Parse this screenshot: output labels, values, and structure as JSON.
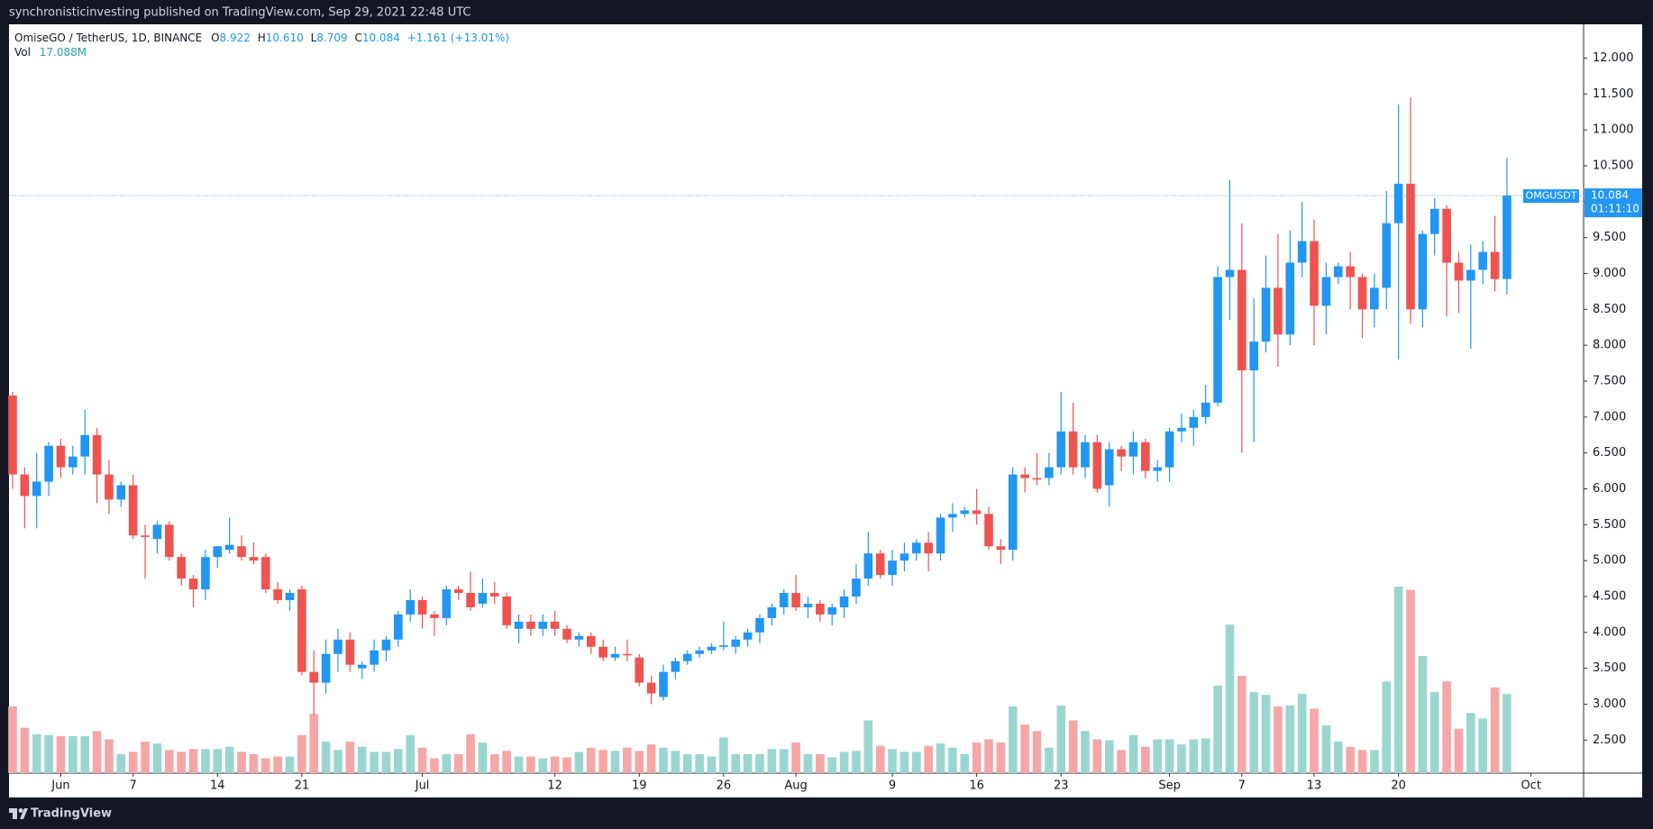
{
  "chart_data": {
    "type": "candlestick",
    "header": "synchronisticinvesting published on TradingView.com, Sep 29, 2021 22:48 UTC",
    "legend": {
      "symbol": "OmiseGO / TetherUS, 1D, BINANCE",
      "ohlc": [
        {
          "label": "O",
          "value": "8.922"
        },
        {
          "label": "H",
          "value": "10.610"
        },
        {
          "label": "L",
          "value": "8.709"
        },
        {
          "label": "C",
          "value": "10.084"
        }
      ],
      "change": "+1.161 (+13.01%)",
      "volume_name": "Vol",
      "volume_label": "17.088M"
    },
    "price_label": {
      "symbol": "OMGUSDT",
      "value": "10.084",
      "countdown": "01:11:10"
    },
    "footer": "TradingView",
    "up_color": "#2196f3",
    "down_color": "#ef5350",
    "volume_up_color": "#9ad6cf",
    "volume_down_color": "#f5a6a6",
    "last_line_color": "#2a9fa6",
    "xlim": [
      -0.26,
      130.36
    ],
    "xticks": [
      {
        "value": 4,
        "label": "Jun"
      },
      {
        "value": 10,
        "label": "7"
      },
      {
        "value": 17,
        "label": "14"
      },
      {
        "value": 24,
        "label": "21"
      },
      {
        "value": 34,
        "label": "Jul"
      },
      {
        "value": 45,
        "label": "12"
      },
      {
        "value": 52,
        "label": "19"
      },
      {
        "value": 59,
        "label": "26"
      },
      {
        "value": 65,
        "label": "Aug"
      },
      {
        "value": 73,
        "label": "9"
      },
      {
        "value": 80,
        "label": "16"
      },
      {
        "value": 87,
        "label": "23"
      },
      {
        "value": 96,
        "label": "Sep"
      },
      {
        "value": 102,
        "label": "7"
      },
      {
        "value": 108,
        "label": "13"
      },
      {
        "value": 115,
        "label": "20"
      },
      {
        "value": 126,
        "label": "Oct"
      }
    ],
    "ylim": [
      2.04,
      12.47
    ],
    "yticks": [
      {
        "value": 2.5,
        "label": "2.500"
      },
      {
        "value": 3,
        "label": "3.000"
      },
      {
        "value": 3.5,
        "label": "3.500"
      },
      {
        "value": 4,
        "label": "4.000"
      },
      {
        "value": 4.5,
        "label": "4.500"
      },
      {
        "value": 5,
        "label": "5.000"
      },
      {
        "value": 5.5,
        "label": "5.500"
      },
      {
        "value": 6,
        "label": "6.000"
      },
      {
        "value": 6.5,
        "label": "6.500"
      },
      {
        "value": 7,
        "label": "7.000"
      },
      {
        "value": 7.5,
        "label": "7.500"
      },
      {
        "value": 8,
        "label": "8.000"
      },
      {
        "value": 8.5,
        "label": "8.500"
      },
      {
        "value": 9,
        "label": "9.000"
      },
      {
        "value": 9.5,
        "label": "9.500"
      },
      {
        "value": 10,
        "label": "10.000"
      },
      {
        "value": 10.5,
        "label": "10.500"
      },
      {
        "value": 11,
        "label": "11.000"
      },
      {
        "value": 11.5,
        "label": "11.500"
      },
      {
        "value": 12,
        "label": "12.000"
      }
    ],
    "open": [
      7.3,
      6.2,
      5.9,
      6.1,
      6.6,
      6.3,
      6.45,
      6.75,
      6.2,
      5.85,
      6.05,
      5.35,
      5.3,
      5.5,
      5.05,
      4.75,
      4.6,
      5.05,
      5.15,
      5.2,
      5.05,
      5.05,
      4.6,
      4.45,
      4.6,
      3.45,
      3.3,
      3.7,
      3.9,
      3.5,
      3.55,
      3.75,
      3.9,
      4.25,
      4.45,
      4.25,
      4.2,
      4.6,
      4.55,
      4.4,
      4.55,
      4.5,
      4.05,
      4.15,
      4.05,
      4.15,
      4.05,
      3.9,
      3.95,
      3.8,
      3.65,
      3.7,
      3.65,
      3.3,
      3.1,
      3.45,
      3.6,
      3.7,
      3.75,
      3.8,
      3.8,
      3.9,
      4.0,
      4.2,
      4.35,
      4.55,
      4.35,
      4.4,
      4.25,
      4.35,
      4.5,
      4.75,
      5.1,
      4.8,
      5.0,
      5.1,
      5.25,
      5.1,
      5.6,
      5.65,
      5.7,
      5.65,
      5.2,
      5.15,
      6.2,
      6.15,
      6.15,
      6.3,
      6.8,
      6.3,
      6.65,
      6.05,
      6.55,
      6.45,
      6.65,
      6.25,
      6.3,
      6.8,
      6.85,
      7.0,
      7.2,
      8.95,
      9.05,
      7.65,
      8.05,
      8.8,
      8.15,
      9.15,
      9.45,
      8.55,
      8.95,
      9.1,
      8.95,
      8.5,
      8.8,
      9.7,
      10.25,
      8.5,
      9.55,
      9.9,
      9.15,
      8.9,
      9.05,
      9.3,
      8.922
    ],
    "high": [
      7.35,
      6.3,
      6.5,
      6.65,
      6.7,
      6.6,
      7.1,
      6.85,
      6.4,
      6.1,
      6.2,
      5.5,
      5.55,
      5.55,
      5.1,
      4.8,
      5.15,
      5.2,
      5.6,
      5.35,
      5.25,
      5.1,
      4.7,
      4.6,
      4.65,
      3.75,
      3.9,
      4.05,
      4.0,
      3.6,
      3.9,
      3.95,
      4.3,
      4.6,
      4.5,
      4.3,
      4.65,
      4.65,
      4.85,
      4.75,
      4.7,
      4.55,
      4.25,
      4.25,
      4.25,
      4.3,
      4.1,
      4.0,
      4.0,
      3.9,
      3.8,
      3.9,
      3.7,
      3.4,
      3.55,
      3.65,
      3.75,
      3.8,
      3.85,
      4.15,
      3.95,
      4.05,
      4.25,
      4.4,
      4.6,
      4.8,
      4.5,
      4.45,
      4.4,
      4.6,
      4.95,
      5.4,
      5.15,
      5.15,
      5.25,
      5.3,
      5.4,
      5.65,
      5.8,
      5.75,
      6.0,
      5.75,
      5.3,
      6.3,
      6.3,
      6.5,
      6.5,
      7.35,
      7.2,
      6.75,
      6.75,
      6.65,
      6.6,
      6.8,
      6.7,
      6.4,
      6.85,
      7.05,
      7.1,
      7.45,
      9.1,
      10.3,
      9.7,
      8.65,
      9.25,
      9.55,
      9.6,
      10.0,
      9.75,
      9.15,
      9.15,
      9.3,
      9.0,
      9.0,
      10.15,
      11.35,
      11.45,
      9.6,
      10.05,
      9.95,
      9.3,
      9.4,
      9.45,
      9.8,
      10.61
    ],
    "low": [
      6.0,
      5.45,
      5.45,
      5.9,
      6.15,
      6.2,
      6.2,
      5.8,
      5.65,
      5.75,
      5.3,
      4.75,
      5.1,
      5.0,
      4.65,
      4.35,
      4.45,
      4.9,
      5.1,
      5.0,
      4.95,
      4.55,
      4.4,
      4.3,
      3.4,
      2.85,
      3.15,
      3.45,
      3.45,
      3.35,
      3.45,
      3.6,
      3.8,
      4.15,
      4.05,
      3.95,
      4.1,
      4.45,
      4.3,
      4.35,
      4.4,
      4.05,
      3.85,
      3.95,
      3.95,
      3.95,
      3.85,
      3.8,
      3.7,
      3.6,
      3.6,
      3.6,
      3.25,
      3.0,
      3.05,
      3.35,
      3.55,
      3.65,
      3.7,
      3.75,
      3.7,
      3.8,
      3.85,
      4.1,
      4.25,
      4.3,
      4.2,
      4.15,
      4.1,
      4.2,
      4.4,
      4.65,
      4.75,
      4.65,
      4.85,
      5.0,
      4.85,
      5.0,
      5.4,
      5.6,
      5.5,
      5.15,
      4.95,
      5.0,
      5.95,
      6.05,
      6.05,
      6.2,
      6.2,
      6.15,
      5.95,
      5.75,
      6.25,
      6.2,
      6.15,
      6.1,
      6.1,
      6.65,
      6.6,
      6.9,
      7.15,
      8.35,
      6.5,
      6.65,
      7.9,
      7.7,
      8.0,
      8.95,
      8.0,
      8.15,
      8.85,
      8.5,
      8.1,
      8.25,
      8.5,
      7.8,
      8.3,
      8.25,
      9.25,
      8.4,
      8.45,
      7.95,
      8.85,
      8.75,
      8.709
    ],
    "close": [
      6.2,
      5.9,
      6.1,
      6.6,
      6.3,
      6.45,
      6.75,
      6.2,
      5.85,
      6.05,
      5.35,
      5.33,
      5.5,
      5.05,
      4.75,
      4.6,
      5.05,
      5.2,
      5.22,
      5.05,
      5.0,
      4.6,
      4.45,
      4.55,
      3.45,
      3.3,
      3.7,
      3.9,
      3.55,
      3.55,
      3.75,
      3.9,
      4.25,
      4.45,
      4.25,
      4.2,
      4.6,
      4.55,
      4.35,
      4.55,
      4.5,
      4.1,
      4.15,
      4.05,
      4.15,
      4.05,
      3.9,
      3.95,
      3.8,
      3.65,
      3.7,
      3.68,
      3.3,
      3.15,
      3.45,
      3.6,
      3.7,
      3.75,
      3.8,
      3.82,
      3.9,
      4.0,
      4.2,
      4.35,
      4.55,
      4.35,
      4.4,
      4.25,
      4.35,
      4.5,
      4.75,
      5.1,
      4.8,
      5.0,
      5.1,
      5.25,
      5.1,
      5.6,
      5.65,
      5.7,
      5.65,
      5.2,
      5.15,
      6.2,
      6.15,
      6.13,
      6.3,
      6.8,
      6.3,
      6.65,
      6.0,
      6.55,
      6.45,
      6.65,
      6.25,
      6.3,
      6.8,
      6.85,
      7.0,
      7.2,
      8.95,
      9.05,
      7.65,
      8.05,
      8.8,
      8.15,
      9.15,
      9.45,
      8.55,
      8.95,
      9.1,
      8.95,
      8.5,
      8.8,
      9.7,
      10.25,
      8.5,
      9.55,
      9.9,
      9.15,
      8.9,
      9.05,
      9.3,
      8.922,
      10.084
    ],
    "volume": [
      14.4,
      9.8,
      8.4,
      8.2,
      8.0,
      8.0,
      8.0,
      9.1,
      7.3,
      4.1,
      4.6,
      6.8,
      6.4,
      5.0,
      4.6,
      5.2,
      5.2,
      5.2,
      5.7,
      4.6,
      4.1,
      3.2,
      3.6,
      3.6,
      8.2,
      12.8,
      6.8,
      5.0,
      6.8,
      5.7,
      4.6,
      4.6,
      5.2,
      8.2,
      5.5,
      3.2,
      4.1,
      4.1,
      8.4,
      6.6,
      4.1,
      4.8,
      3.6,
      3.6,
      3.2,
      3.6,
      3.4,
      4.6,
      5.5,
      5.0,
      4.8,
      5.5,
      4.8,
      6.2,
      5.5,
      4.8,
      4.1,
      4.1,
      3.6,
      7.7,
      4.1,
      4.1,
      4.1,
      5.2,
      5.2,
      6.6,
      4.1,
      4.1,
      3.4,
      4.6,
      4.8,
      11.4,
      5.9,
      5.2,
      4.6,
      4.6,
      5.9,
      6.4,
      5.5,
      4.1,
      6.6,
      7.3,
      6.6,
      14.4,
      10.5,
      9.1,
      5.5,
      14.6,
      11.4,
      9.1,
      7.3,
      7.1,
      5.0,
      8.2,
      5.7,
      7.3,
      7.3,
      6.2,
      7.3,
      7.5,
      18.9,
      32.1,
      21.0,
      17.5,
      16.9,
      14.4,
      14.6,
      17.1,
      13.9,
      10.3,
      6.8,
      5.7,
      5.0,
      5.0,
      19.8,
      40.3,
      39.6,
      25.3,
      17.5,
      19.8,
      9.6,
      13.0,
      11.8,
      18.5,
      17.088
    ]
  }
}
